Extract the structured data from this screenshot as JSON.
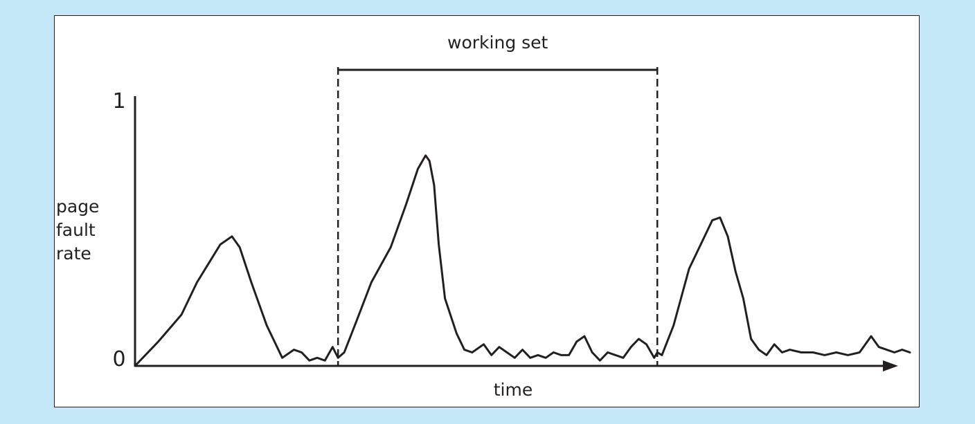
{
  "colors": {
    "background": "#c5e8f8",
    "panel": "#ffffff",
    "ink": "#231f20"
  },
  "chart_data": {
    "type": "line",
    "xlabel": "time",
    "ylabel": [
      "page",
      "fault",
      "rate"
    ],
    "ytick_labels": [
      "1",
      "0"
    ],
    "ylim": [
      0,
      1
    ],
    "xlim": [
      0,
      100
    ],
    "grid": false,
    "bracket": {
      "label": "working set",
      "x_start": 26.2,
      "x_end": 67.4
    },
    "series": [
      {
        "x": [
          0,
          3,
          6,
          8,
          9.5,
          11,
          12.5,
          13.5,
          15,
          17,
          19,
          20.5,
          21.5,
          22.5,
          23.5,
          24.5,
          25.5,
          26.2,
          27,
          28.5,
          30.5,
          33,
          35,
          36.5,
          37.5,
          38,
          38.6,
          39.2,
          40,
          41.5,
          42.5,
          43.5,
          45,
          46,
          47,
          48,
          49,
          50,
          51,
          52,
          53,
          54,
          55,
          56,
          57,
          58,
          59,
          60,
          61,
          62,
          63,
          64,
          65,
          66,
          67,
          67.4,
          68,
          69.5,
          71.5,
          73,
          74.5,
          75.5,
          76.5,
          77.5,
          78.5,
          79.5,
          80.5,
          81.5,
          82.5,
          83.5,
          84.5,
          86,
          87.5,
          89,
          90.5,
          92,
          93.5,
          95,
          96,
          97,
          98,
          99,
          100
        ],
        "y": [
          0,
          0.09,
          0.19,
          0.31,
          0.38,
          0.45,
          0.48,
          0.44,
          0.31,
          0.15,
          0.03,
          0.06,
          0.05,
          0.02,
          0.03,
          0.02,
          0.07,
          0.03,
          0.05,
          0.16,
          0.31,
          0.44,
          0.6,
          0.73,
          0.78,
          0.76,
          0.67,
          0.45,
          0.25,
          0.12,
          0.06,
          0.05,
          0.08,
          0.04,
          0.07,
          0.05,
          0.03,
          0.06,
          0.03,
          0.04,
          0.03,
          0.05,
          0.04,
          0.04,
          0.09,
          0.11,
          0.05,
          0.02,
          0.05,
          0.04,
          0.03,
          0.07,
          0.1,
          0.08,
          0.03,
          0.05,
          0.04,
          0.15,
          0.36,
          0.45,
          0.54,
          0.55,
          0.48,
          0.35,
          0.25,
          0.1,
          0.06,
          0.04,
          0.08,
          0.05,
          0.06,
          0.05,
          0.05,
          0.04,
          0.05,
          0.04,
          0.05,
          0.11,
          0.07,
          0.06,
          0.05,
          0.06,
          0.05
        ]
      }
    ]
  }
}
